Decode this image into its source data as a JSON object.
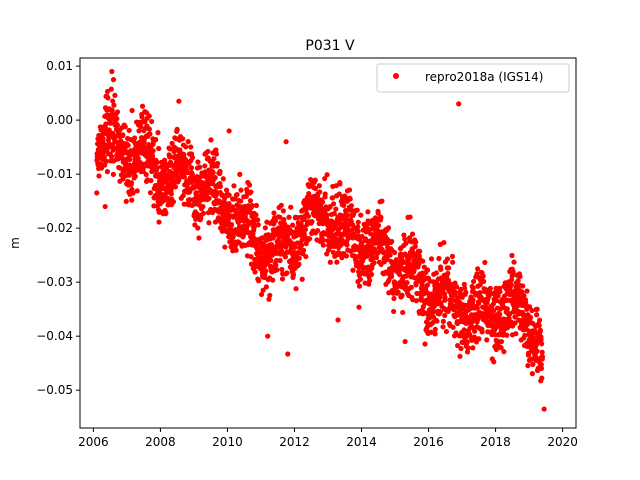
{
  "chart_data": {
    "type": "scatter",
    "title": "P031 V",
    "xlabel": "",
    "ylabel": "m",
    "xlim": [
      2005.6,
      2020.4
    ],
    "ylim": [
      -0.057,
      0.0115
    ],
    "xticks": [
      2006,
      2008,
      2010,
      2012,
      2014,
      2016,
      2018,
      2020
    ],
    "yticks": [
      0.01,
      0.0,
      -0.01,
      -0.02,
      -0.03,
      -0.04,
      -0.05
    ],
    "ytick_labels": [
      "0.01",
      "0.00",
      "−0.01",
      "−0.02",
      "−0.03",
      "−0.04",
      "−0.05"
    ],
    "grid": false,
    "legend_position": "top-right",
    "series": [
      {
        "name": "repro2018a (IGS14)",
        "color": "#ff0000",
        "marker": "circle",
        "trend": [
          [
            2006.1,
            -0.004
          ],
          [
            2006.6,
            -0.004
          ],
          [
            2007.0,
            -0.006
          ],
          [
            2007.5,
            -0.007
          ],
          [
            2008.0,
            -0.01
          ],
          [
            2008.5,
            -0.01
          ],
          [
            2009.0,
            -0.012
          ],
          [
            2009.5,
            -0.013
          ],
          [
            2010.0,
            -0.016
          ],
          [
            2010.5,
            -0.02
          ],
          [
            2011.0,
            -0.024
          ],
          [
            2011.5,
            -0.025
          ],
          [
            2012.0,
            -0.022
          ],
          [
            2012.5,
            -0.018
          ],
          [
            2013.0,
            -0.017
          ],
          [
            2013.5,
            -0.021
          ],
          [
            2014.0,
            -0.023
          ],
          [
            2014.5,
            -0.024
          ],
          [
            2015.0,
            -0.026
          ],
          [
            2015.5,
            -0.029
          ],
          [
            2016.0,
            -0.032
          ],
          [
            2016.5,
            -0.033
          ],
          [
            2017.0,
            -0.035
          ],
          [
            2017.5,
            -0.037
          ],
          [
            2018.0,
            -0.035
          ],
          [
            2018.5,
            -0.035
          ],
          [
            2019.0,
            -0.036
          ],
          [
            2019.4,
            -0.044
          ]
        ],
        "outliers": [
          [
            2006.55,
            0.009
          ],
          [
            2006.6,
            0.0075
          ],
          [
            2008.55,
            0.0035
          ],
          [
            2010.05,
            -0.002
          ],
          [
            2011.75,
            -0.004
          ],
          [
            2011.2,
            -0.04
          ],
          [
            2011.8,
            -0.0433
          ],
          [
            2006.35,
            -0.016
          ],
          [
            2016.9,
            0.003
          ],
          [
            2019.45,
            -0.0535
          ],
          [
            2013.3,
            -0.037
          ],
          [
            2015.3,
            -0.041
          ]
        ]
      }
    ]
  }
}
